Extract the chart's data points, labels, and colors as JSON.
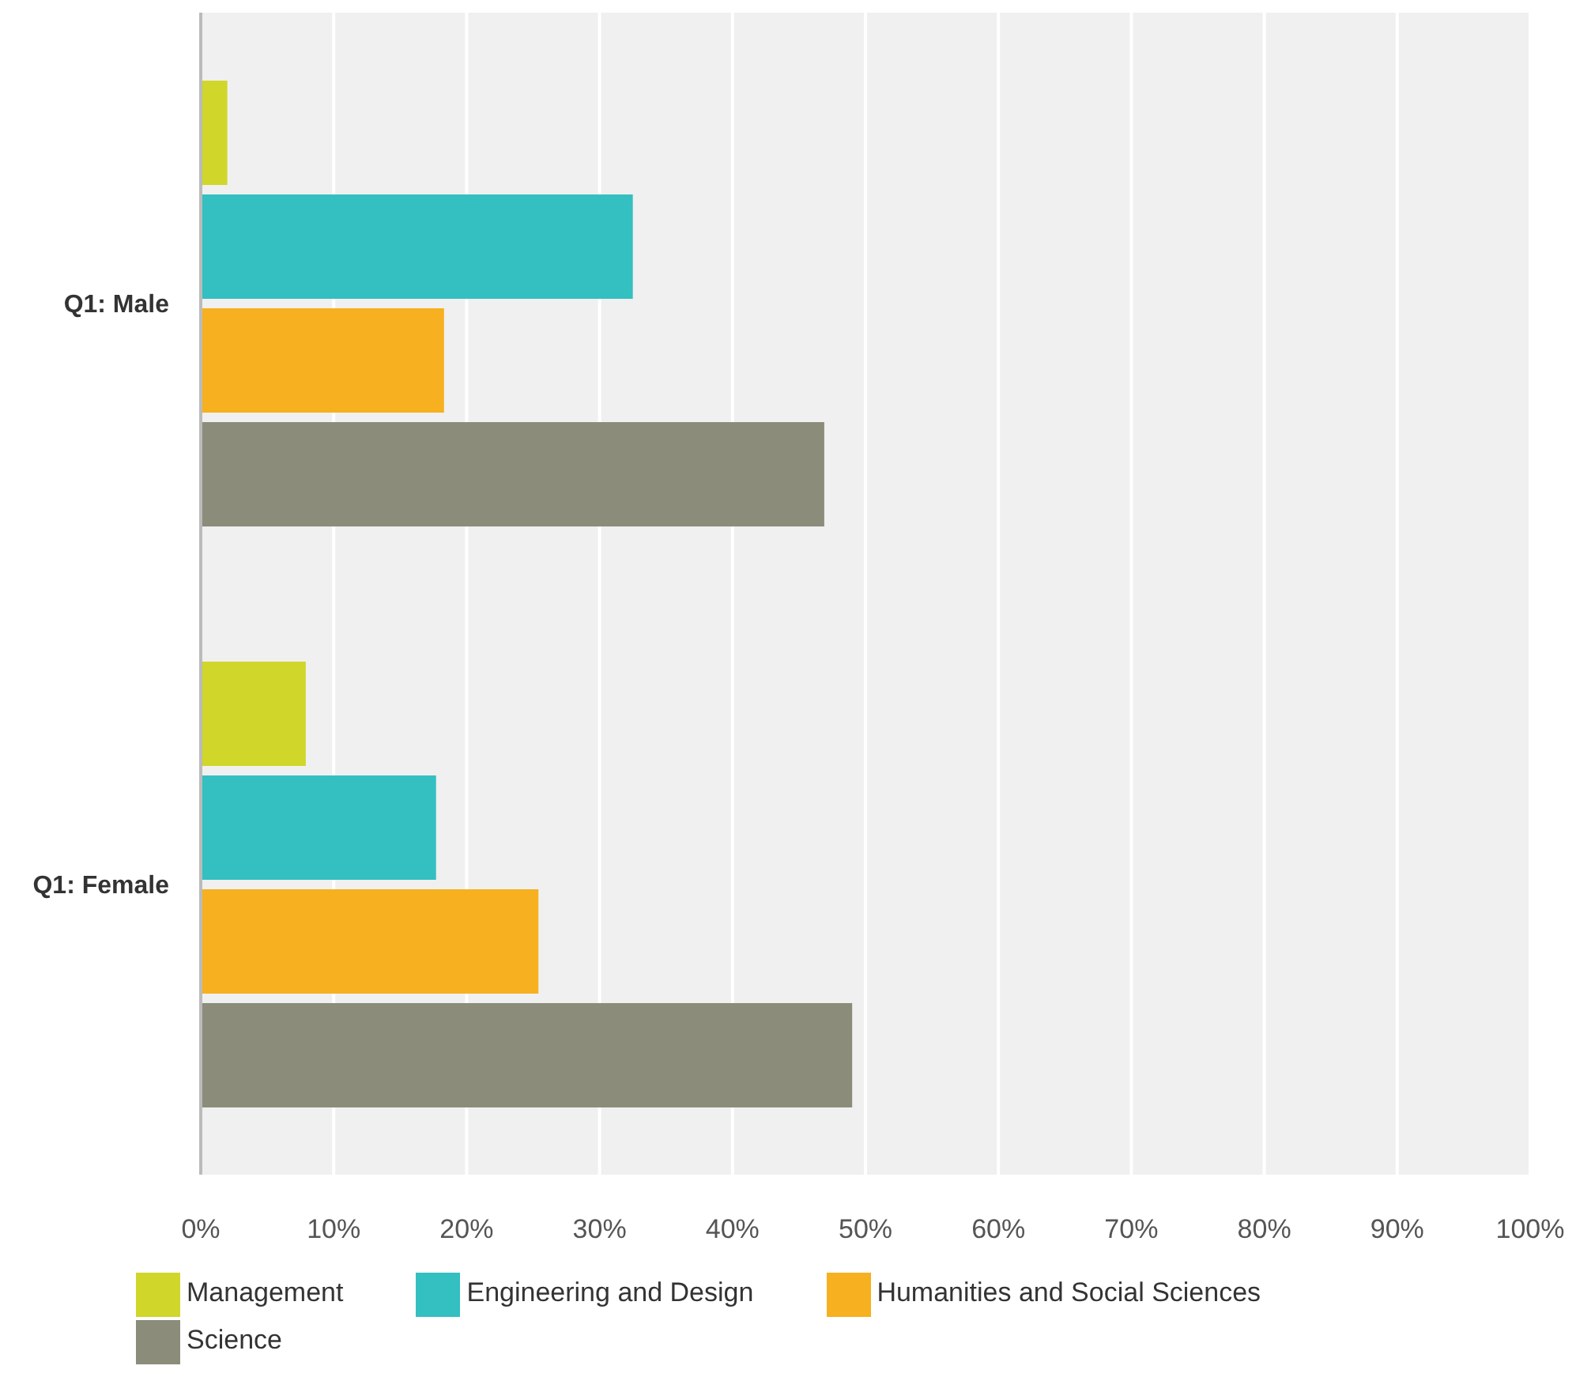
{
  "chart_data": {
    "type": "bar",
    "orientation": "horizontal",
    "categories": [
      "Q1: Male",
      "Q1: Female"
    ],
    "series": [
      {
        "name": "Management",
        "color": "#d0d62a",
        "values": [
          2,
          7.9
        ]
      },
      {
        "name": "Engineering and Design",
        "color": "#34bfc1",
        "values": [
          32.5,
          17.7
        ]
      },
      {
        "name": "Humanities and Social Sciences",
        "color": "#f6b020",
        "values": [
          18.3,
          25.4
        ]
      },
      {
        "name": "Science",
        "color": "#8b8c7a",
        "values": [
          46.9,
          49
        ]
      }
    ],
    "xlim": [
      0,
      100
    ],
    "xticks": [
      {
        "value": 0,
        "label": "0%"
      },
      {
        "value": 10,
        "label": "10%"
      },
      {
        "value": 20,
        "label": "20%"
      },
      {
        "value": 30,
        "label": "30%"
      },
      {
        "value": 40,
        "label": "40%"
      },
      {
        "value": 50,
        "label": "50%"
      },
      {
        "value": 60,
        "label": "60%"
      },
      {
        "value": 70,
        "label": "70%"
      },
      {
        "value": 80,
        "label": "80%"
      },
      {
        "value": 90,
        "label": "90%"
      },
      {
        "value": 100,
        "label": "100%"
      }
    ],
    "grid": "x",
    "legend": "bottom"
  }
}
